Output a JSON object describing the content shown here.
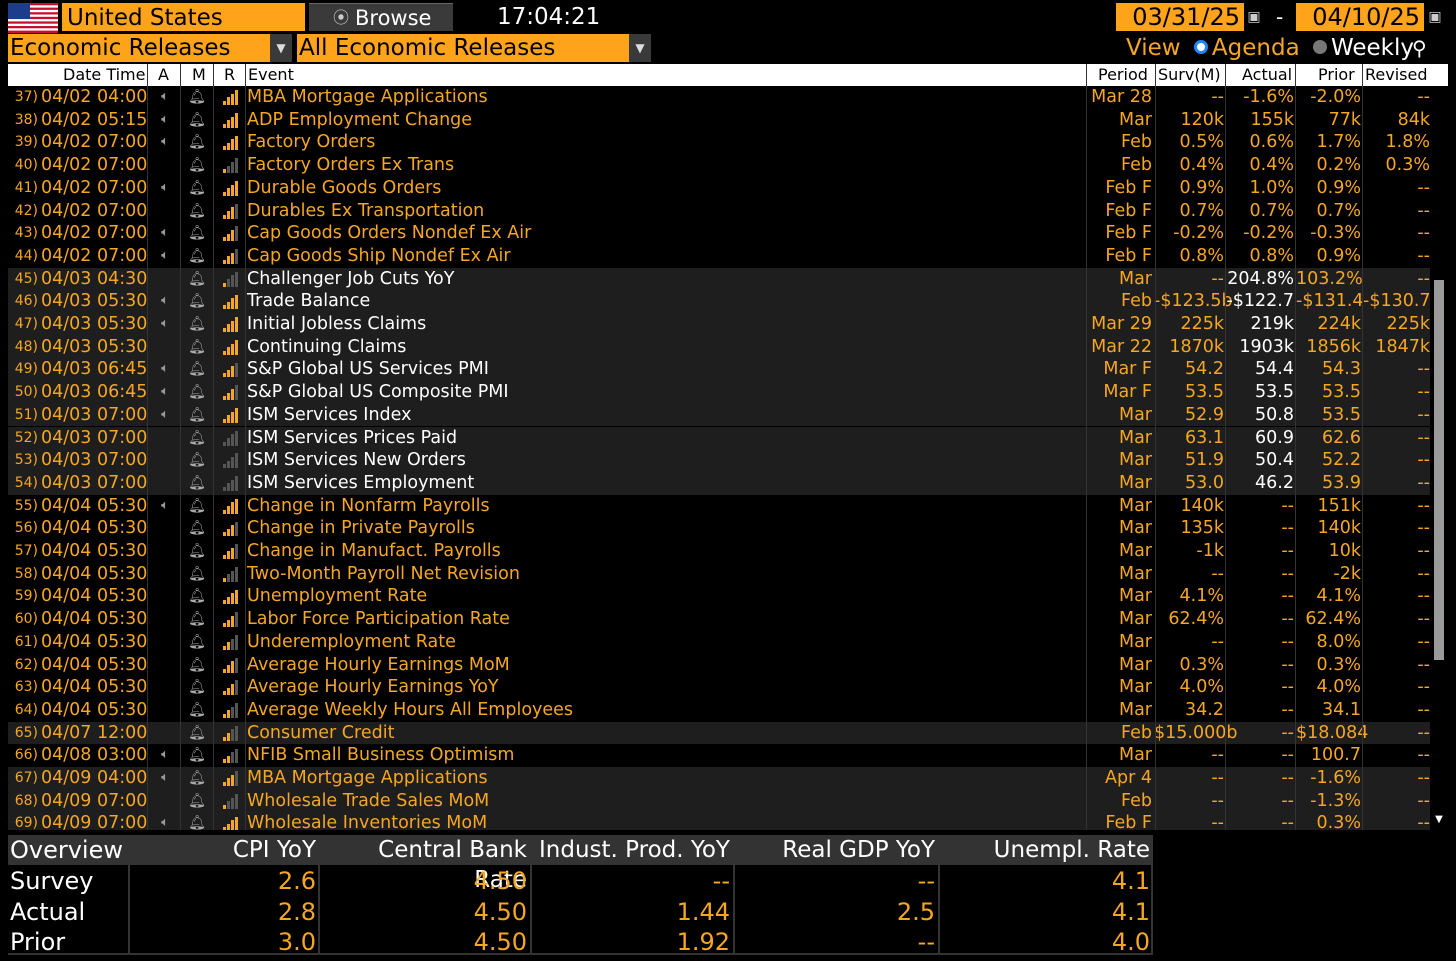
{
  "header": {
    "country": "United States",
    "browse_label": "Browse",
    "time": "17:04:21",
    "start_date": "03/31/25",
    "date_separator": "-",
    "end_date": "04/10/25"
  },
  "filters": {
    "category": "Economic Releases",
    "subcategory": "All Economic Releases",
    "view_label": "View",
    "agenda_label": "Agenda",
    "weekly_label": "Weekly"
  },
  "columns": {
    "datetime": "Date Time",
    "a": "A",
    "m": "M",
    "r": "R",
    "event": "Event",
    "period": "Period",
    "survey": "Surv(M)",
    "actual": "Actual",
    "prior": "Prior",
    "revised": "Revised"
  },
  "rows": [
    {
      "num": "37)",
      "dt": "04/02 04:00",
      "a": true,
      "r": 4,
      "event": "MBA Mortgage Applications",
      "period": "Mar 28",
      "survey": "--",
      "actual": "-1.6%",
      "prior": "-2.0%",
      "revised": "--",
      "white": false,
      "shade": false
    },
    {
      "num": "38)",
      "dt": "04/02 05:15",
      "a": true,
      "r": 4,
      "event": "ADP Employment Change",
      "period": "Mar",
      "survey": "120k",
      "actual": "155k",
      "prior": "77k",
      "revised": "84k",
      "white": false,
      "shade": false
    },
    {
      "num": "39)",
      "dt": "04/02 07:00",
      "a": true,
      "r": 4,
      "event": "Factory Orders",
      "period": "Feb",
      "survey": "0.5%",
      "actual": "0.6%",
      "prior": "1.7%",
      "revised": "1.8%",
      "white": false,
      "shade": false
    },
    {
      "num": "40)",
      "dt": "04/02 07:00",
      "a": false,
      "r": 1,
      "event": "Factory Orders Ex Trans",
      "period": "Feb",
      "survey": "0.4%",
      "actual": "0.4%",
      "prior": "0.2%",
      "revised": "0.3%",
      "white": false,
      "shade": false
    },
    {
      "num": "41)",
      "dt": "04/02 07:00",
      "a": true,
      "r": 4,
      "event": "Durable Goods Orders",
      "period": "Feb F",
      "survey": "0.9%",
      "actual": "1.0%",
      "prior": "0.9%",
      "revised": "--",
      "white": false,
      "shade": false
    },
    {
      "num": "42)",
      "dt": "04/02 07:00",
      "a": false,
      "r": 3,
      "event": "Durables Ex Transportation",
      "period": "Feb F",
      "survey": "0.7%",
      "actual": "0.7%",
      "prior": "0.7%",
      "revised": "--",
      "white": false,
      "shade": false
    },
    {
      "num": "43)",
      "dt": "04/02 07:00",
      "a": true,
      "r": 3,
      "event": "Cap Goods Orders Nondef Ex Air",
      "period": "Feb F",
      "survey": "-0.2%",
      "actual": "-0.2%",
      "prior": "-0.3%",
      "revised": "--",
      "white": false,
      "shade": false
    },
    {
      "num": "44)",
      "dt": "04/02 07:00",
      "a": true,
      "r": 3,
      "event": "Cap Goods Ship Nondef Ex Air",
      "period": "Feb F",
      "survey": "0.8%",
      "actual": "0.8%",
      "prior": "0.9%",
      "revised": "--",
      "white": false,
      "shade": false
    },
    {
      "num": "45)",
      "dt": "04/03 04:30",
      "a": false,
      "r": 1,
      "event": "Challenger Job Cuts YoY",
      "period": "Mar",
      "survey": "--",
      "actual": "204.8%",
      "prior": "103.2%",
      "revised": "--",
      "white": true,
      "shade": true
    },
    {
      "num": "46)",
      "dt": "04/03 05:30",
      "a": true,
      "r": 4,
      "event": "Trade Balance",
      "period": "Feb",
      "survey": "-$123.5b",
      "actual": "-$122.7",
      "prior": "-$131.4",
      "revised": "-$130.7b",
      "white": true,
      "shade": true
    },
    {
      "num": "47)",
      "dt": "04/03 05:30",
      "a": true,
      "r": 4,
      "event": "Initial Jobless Claims",
      "period": "Mar 29",
      "survey": "225k",
      "actual": "219k",
      "prior": "224k",
      "revised": "225k",
      "white": true,
      "shade": true
    },
    {
      "num": "48)",
      "dt": "04/03 05:30",
      "a": false,
      "r": 4,
      "event": "Continuing Claims",
      "period": "Mar 22",
      "survey": "1870k",
      "actual": "1903k",
      "prior": "1856k",
      "revised": "1847k",
      "white": true,
      "shade": true
    },
    {
      "num": "49)",
      "dt": "04/03 06:45",
      "a": true,
      "r": 3,
      "event": "S&P Global US Services PMI",
      "period": "Mar F",
      "survey": "54.2",
      "actual": "54.4",
      "prior": "54.3",
      "revised": "--",
      "white": true,
      "shade": true
    },
    {
      "num": "50)",
      "dt": "04/03 06:45",
      "a": true,
      "r": 3,
      "event": "S&P Global US Composite PMI",
      "period": "Mar F",
      "survey": "53.5",
      "actual": "53.5",
      "prior": "53.5",
      "revised": "--",
      "white": true,
      "shade": true
    },
    {
      "num": "51)",
      "dt": "04/03 07:00",
      "a": true,
      "r": 4,
      "event": "ISM Services Index",
      "period": "Mar",
      "survey": "52.9",
      "actual": "50.8",
      "prior": "53.5",
      "revised": "--",
      "white": true,
      "shade": true
    },
    {
      "num": "52)",
      "dt": "04/03 07:00",
      "a": false,
      "r": 0,
      "event": "ISM Services Prices Paid",
      "period": "Mar",
      "survey": "63.1",
      "actual": "60.9",
      "prior": "62.6",
      "revised": "--",
      "white": true,
      "shade": true
    },
    {
      "num": "53)",
      "dt": "04/03 07:00",
      "a": false,
      "r": 0,
      "event": "ISM Services New Orders",
      "period": "Mar",
      "survey": "51.9",
      "actual": "50.4",
      "prior": "52.2",
      "revised": "--",
      "white": true,
      "shade": true
    },
    {
      "num": "54)",
      "dt": "04/03 07:00",
      "a": false,
      "r": 0,
      "event": "ISM Services Employment",
      "period": "Mar",
      "survey": "53.0",
      "actual": "46.2",
      "prior": "53.9",
      "revised": "--",
      "white": true,
      "shade": true
    },
    {
      "num": "55)",
      "dt": "04/04 05:30",
      "a": true,
      "r": 4,
      "event": "Change in Nonfarm Payrolls",
      "period": "Mar",
      "survey": "140k",
      "actual": "--",
      "prior": "151k",
      "revised": "--",
      "white": false,
      "shade": false
    },
    {
      "num": "56)",
      "dt": "04/04 05:30",
      "a": false,
      "r": 3,
      "event": "Change in Private Payrolls",
      "period": "Mar",
      "survey": "135k",
      "actual": "--",
      "prior": "140k",
      "revised": "--",
      "white": false,
      "shade": false
    },
    {
      "num": "57)",
      "dt": "04/04 05:30",
      "a": false,
      "r": 3,
      "event": "Change in Manufact. Payrolls",
      "period": "Mar",
      "survey": "-1k",
      "actual": "--",
      "prior": "10k",
      "revised": "--",
      "white": false,
      "shade": false
    },
    {
      "num": "58)",
      "dt": "04/04 05:30",
      "a": false,
      "r": 1,
      "event": "Two-Month Payroll Net Revision",
      "period": "Mar",
      "survey": "--",
      "actual": "--",
      "prior": "-2k",
      "revised": "--",
      "white": false,
      "shade": false
    },
    {
      "num": "59)",
      "dt": "04/04 05:30",
      "a": false,
      "r": 4,
      "event": "Unemployment Rate",
      "period": "Mar",
      "survey": "4.1%",
      "actual": "--",
      "prior": "4.1%",
      "revised": "--",
      "white": false,
      "shade": false
    },
    {
      "num": "60)",
      "dt": "04/04 05:30",
      "a": false,
      "r": 3,
      "event": "Labor Force Participation Rate",
      "period": "Mar",
      "survey": "62.4%",
      "actual": "--",
      "prior": "62.4%",
      "revised": "--",
      "white": false,
      "shade": false
    },
    {
      "num": "61)",
      "dt": "04/04 05:30",
      "a": false,
      "r": 2,
      "event": "Underemployment Rate",
      "period": "Mar",
      "survey": "--",
      "actual": "--",
      "prior": "8.0%",
      "revised": "--",
      "white": false,
      "shade": false
    },
    {
      "num": "62)",
      "dt": "04/04 05:30",
      "a": false,
      "r": 3,
      "event": "Average Hourly Earnings MoM",
      "period": "Mar",
      "survey": "0.3%",
      "actual": "--",
      "prior": "0.3%",
      "revised": "--",
      "white": false,
      "shade": false
    },
    {
      "num": "63)",
      "dt": "04/04 05:30",
      "a": false,
      "r": 3,
      "event": "Average Hourly Earnings YoY",
      "period": "Mar",
      "survey": "4.0%",
      "actual": "--",
      "prior": "4.0%",
      "revised": "--",
      "white": false,
      "shade": false
    },
    {
      "num": "64)",
      "dt": "04/04 05:30",
      "a": false,
      "r": 2,
      "event": "Average Weekly Hours All Employees",
      "period": "Mar",
      "survey": "34.2",
      "actual": "--",
      "prior": "34.1",
      "revised": "--",
      "white": false,
      "shade": false
    },
    {
      "num": "65)",
      "dt": "04/07 12:00",
      "a": false,
      "r": 2,
      "event": "Consumer Credit",
      "period": "Feb",
      "survey": "$15.000b",
      "actual": "--",
      "prior": "$18.084",
      "revised": "--",
      "white": false,
      "shade": true
    },
    {
      "num": "66)",
      "dt": "04/08 03:00",
      "a": true,
      "r": 2,
      "event": "NFIB Small Business Optimism",
      "period": "Mar",
      "survey": "--",
      "actual": "--",
      "prior": "100.7",
      "revised": "--",
      "white": false,
      "shade": false
    },
    {
      "num": "67)",
      "dt": "04/09 04:00",
      "a": true,
      "r": 3,
      "event": "MBA Mortgage Applications",
      "period": "Apr 4",
      "survey": "--",
      "actual": "--",
      "prior": "-1.6%",
      "revised": "--",
      "white": false,
      "shade": true
    },
    {
      "num": "68)",
      "dt": "04/09 07:00",
      "a": false,
      "r": 1,
      "event": "Wholesale Trade Sales MoM",
      "period": "Feb",
      "survey": "--",
      "actual": "--",
      "prior": "-1.3%",
      "revised": "--",
      "white": false,
      "shade": true
    },
    {
      "num": "69)",
      "dt": "04/09 07:00",
      "a": true,
      "r": 4,
      "event": "Wholesale Inventories MoM",
      "period": "Feb F",
      "survey": "--",
      "actual": "--",
      "prior": "0.3%",
      "revised": "--",
      "white": false,
      "shade": true
    }
  ],
  "overview": {
    "title": "Overview",
    "headers": [
      "CPI YoY",
      "Central Bank Rate",
      "Indust. Prod. YoY",
      "Real GDP YoY",
      "Unempl. Rate"
    ],
    "rows": [
      {
        "label": "Survey",
        "values": [
          "2.6",
          "4.50",
          "--",
          "--",
          "4.1"
        ]
      },
      {
        "label": "Actual",
        "values": [
          "2.8",
          "4.50",
          "1.44",
          "2.5",
          "4.1"
        ]
      },
      {
        "label": "Prior",
        "values": [
          "3.0",
          "4.50",
          "1.92",
          "--",
          "4.0"
        ]
      }
    ]
  },
  "colors": {
    "accent": "#ffa31a",
    "text_orange": "#f5a623",
    "background": "#000000",
    "highlight_white": "#ffffff"
  },
  "icons": {
    "flag": "us-flag-icon",
    "browse": "browse-icon",
    "calendar": "calendar-icon",
    "alert": "speaker-icon",
    "bell": "bell-icon",
    "relevance": "signal-bars-icon",
    "search": "search-plus-icon"
  }
}
